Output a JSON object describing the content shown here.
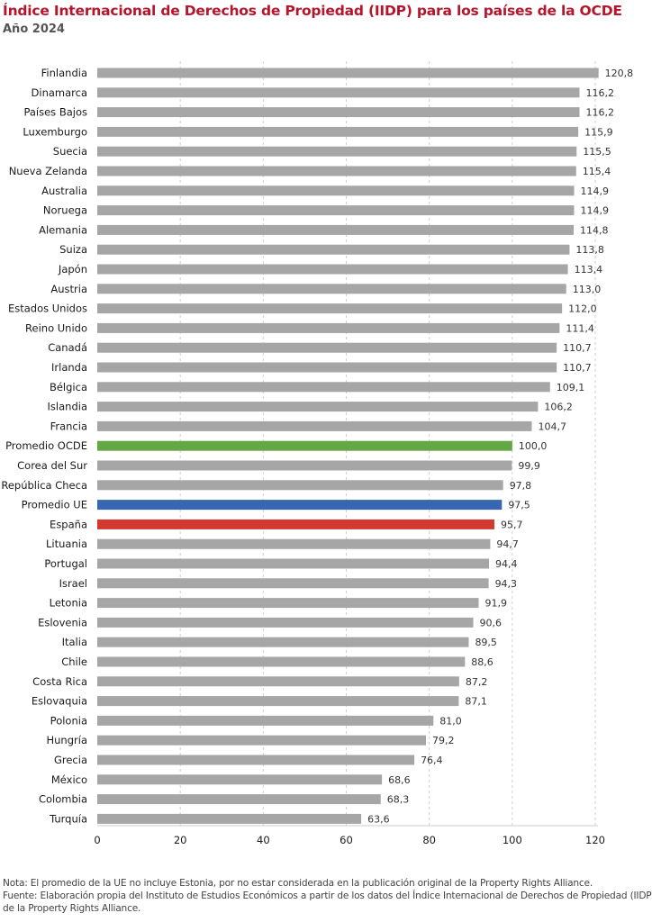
{
  "chart_data": {
    "type": "bar",
    "orientation": "horizontal",
    "title": "Índice Internacional de Derechos de Propiedad (IIDP) para los países de la OCDE",
    "subtitle": "Año 2024",
    "xlabel": "",
    "ylabel": "",
    "xlim": [
      0,
      120
    ],
    "xticks": [
      0,
      20,
      40,
      60,
      80,
      100,
      120
    ],
    "grid": true,
    "legend": "none",
    "colors": {
      "default": "#a6a6a6",
      "Promedio OCDE": "#63a845",
      "Promedio UE": "#3667b0",
      "España": "#d23a2f"
    },
    "categories": [
      "Finlandia",
      "Dinamarca",
      "Países Bajos",
      "Luxemburgo",
      "Suecia",
      "Nueva Zelanda",
      "Australia",
      "Noruega",
      "Alemania",
      "Suiza",
      "Japón",
      "Austria",
      "Estados Unidos",
      "Reino Unido",
      "Canadá",
      "Irlanda",
      "Bélgica",
      "Islandia",
      "Francia",
      "Promedio OCDE",
      "Corea del Sur",
      "República Checa",
      "Promedio UE",
      "España",
      "Lituania",
      "Portugal",
      "Israel",
      "Letonia",
      "Eslovenia",
      "Italia",
      "Chile",
      "Costa Rica",
      "Eslovaquia",
      "Polonia",
      "Hungría",
      "Grecia",
      "México",
      "Colombia",
      "Turquía"
    ],
    "values": [
      120.8,
      116.2,
      116.2,
      115.9,
      115.5,
      115.4,
      114.9,
      114.9,
      114.8,
      113.8,
      113.4,
      113.0,
      112.0,
      111.4,
      110.7,
      110.7,
      109.1,
      106.2,
      104.7,
      100.0,
      99.9,
      97.8,
      97.5,
      95.7,
      94.7,
      94.4,
      94.3,
      91.9,
      90.6,
      89.5,
      88.6,
      87.2,
      87.1,
      81.0,
      79.2,
      76.4,
      68.6,
      68.3,
      63.6
    ],
    "value_labels": [
      "120,8",
      "116,2",
      "116,2",
      "115,9",
      "115,5",
      "115,4",
      "114,9",
      "114,9",
      "114,8",
      "113,8",
      "113,4",
      "113,0",
      "112,0",
      "111,4",
      "110,7",
      "110,7",
      "109,1",
      "106,2",
      "104,7",
      "100,0",
      "99,9",
      "97,8",
      "97,5",
      "95,7",
      "94,7",
      "94,4",
      "94,3",
      "91,9",
      "90,6",
      "89,5",
      "88,6",
      "87,2",
      "87,1",
      "81,0",
      "79,2",
      "76,4",
      "68,6",
      "68,3",
      "63,6"
    ]
  },
  "notes": {
    "note": "Nota: El promedio de la UE no incluye Estonia, por no estar considerada en la publicación original de la Property Rights Alliance.",
    "source_line1": "Fuente: Elaboración propia del Instituto de Estudios Económicos a partir de los datos del Índice Internacional de Derechos de Propiedad (IIDP)",
    "source_line2": "de la Property Rights Alliance."
  }
}
